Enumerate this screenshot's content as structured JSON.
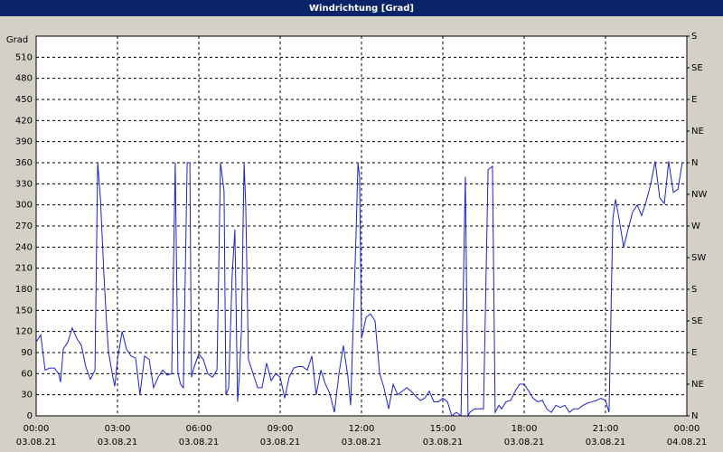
{
  "chart_data": {
    "type": "line",
    "title": "Windrichtung [Grad]",
    "y_label": "Grad",
    "xlim": [
      0,
      24
    ],
    "ylim": [
      0,
      540
    ],
    "y2lim": [
      0,
      540
    ],
    "grid": true,
    "xticks": [
      {
        "value": 0,
        "label": "00:00",
        "date": "03.08.21"
      },
      {
        "value": 3,
        "label": "03:00",
        "date": "03.08.21"
      },
      {
        "value": 6,
        "label": "06:00",
        "date": "03.08.21"
      },
      {
        "value": 9,
        "label": "09:00",
        "date": "03.08.21"
      },
      {
        "value": 12,
        "label": "12:00",
        "date": "03.08.21"
      },
      {
        "value": 15,
        "label": "15:00",
        "date": "03.08.21"
      },
      {
        "value": 18,
        "label": "18:00",
        "date": "03.08.21"
      },
      {
        "value": 21,
        "label": "21:00",
        "date": "03.08.21"
      },
      {
        "value": 24,
        "label": "00:00",
        "date": "04.08.21"
      }
    ],
    "yticks": [
      0,
      30,
      60,
      90,
      120,
      150,
      180,
      210,
      240,
      270,
      300,
      330,
      360,
      390,
      420,
      450,
      480,
      510
    ],
    "y2ticks": [
      {
        "value": 0,
        "label": "N"
      },
      {
        "value": 45,
        "label": "NE"
      },
      {
        "value": 90,
        "label": "E"
      },
      {
        "value": 135,
        "label": "SE"
      },
      {
        "value": 180,
        "label": "S"
      },
      {
        "value": 225,
        "label": "SW"
      },
      {
        "value": 270,
        "label": "W"
      },
      {
        "value": 315,
        "label": "NW"
      },
      {
        "value": 360,
        "label": "N"
      },
      {
        "value": 405,
        "label": "NE"
      },
      {
        "value": 450,
        "label": "E"
      },
      {
        "value": 495,
        "label": "SE"
      },
      {
        "value": 540,
        "label": "S"
      }
    ],
    "series": [
      {
        "color": "#1f1fd0",
        "x": [
          0,
          0.17,
          0.33,
          0.5,
          0.67,
          0.83,
          0.9,
          1.0,
          1.17,
          1.33,
          1.5,
          1.67,
          1.83,
          2.0,
          2.17,
          2.27,
          2.37,
          2.5,
          2.6,
          2.67,
          2.83,
          2.9,
          3.0,
          3.17,
          3.33,
          3.5,
          3.67,
          3.83,
          4.0,
          4.17,
          4.33,
          4.5,
          4.67,
          4.83,
          5.0,
          5.13,
          5.23,
          5.33,
          5.43,
          5.57,
          5.67,
          5.73,
          5.83,
          6.0,
          6.17,
          6.33,
          6.5,
          6.67,
          6.8,
          6.93,
          7.0,
          7.1,
          7.23,
          7.33,
          7.43,
          7.5,
          7.57,
          7.67,
          7.73,
          7.83,
          8.0,
          8.17,
          8.33,
          8.5,
          8.67,
          8.83,
          9.0,
          9.17,
          9.33,
          9.5,
          9.67,
          9.83,
          10.0,
          10.17,
          10.33,
          10.5,
          10.67,
          10.83,
          11.0,
          11.17,
          11.33,
          11.5,
          11.6,
          11.8,
          11.87,
          11.93,
          12.0,
          12.17,
          12.33,
          12.5,
          12.67,
          12.83,
          13.0,
          13.17,
          13.33,
          13.5,
          13.67,
          13.83,
          14.0,
          14.17,
          14.33,
          14.5,
          14.67,
          14.83,
          15.0,
          15.17,
          15.33,
          15.5,
          15.67,
          15.83,
          15.93,
          16.0,
          16.17,
          16.33,
          16.5,
          16.67,
          16.83,
          16.93,
          17.07,
          17.17,
          17.33,
          17.5,
          17.67,
          17.83,
          18.0,
          18.17,
          18.33,
          18.5,
          18.67,
          18.83,
          19.0,
          19.17,
          19.33,
          19.5,
          19.67,
          19.83,
          20.0,
          20.17,
          20.33,
          20.5,
          20.67,
          20.83,
          21.0,
          21.13,
          21.27,
          21.37,
          21.5,
          21.67,
          21.83,
          22.0,
          22.17,
          22.33,
          22.5,
          22.67,
          22.83,
          23.0,
          23.17,
          23.33,
          23.5,
          23.67,
          23.83
        ],
        "values": [
          105,
          115,
          65,
          68,
          68,
          60,
          48,
          95,
          105,
          125,
          110,
          100,
          70,
          52,
          65,
          360,
          310,
          200,
          130,
          90,
          55,
          42,
          80,
          120,
          95,
          85,
          82,
          30,
          85,
          80,
          40,
          55,
          65,
          58,
          60,
          360,
          60,
          45,
          40,
          360,
          360,
          55,
          70,
          88,
          80,
          60,
          55,
          65,
          360,
          320,
          30,
          40,
          200,
          265,
          20,
          60,
          120,
          360,
          300,
          80,
          60,
          40,
          40,
          75,
          50,
          60,
          55,
          25,
          55,
          68,
          70,
          70,
          65,
          85,
          30,
          65,
          45,
          32,
          5,
          60,
          100,
          55,
          15,
          260,
          360,
          340,
          110,
          140,
          145,
          135,
          60,
          40,
          10,
          45,
          30,
          35,
          40,
          35,
          28,
          22,
          25,
          35,
          20,
          20,
          25,
          20,
          0,
          5,
          0,
          340,
          0,
          5,
          10,
          10,
          10,
          350,
          355,
          5,
          15,
          10,
          20,
          22,
          35,
          45,
          45,
          35,
          25,
          20,
          22,
          10,
          5,
          15,
          12,
          15,
          5,
          10,
          10,
          15,
          18,
          20,
          22,
          25,
          22,
          5,
          280,
          308,
          280,
          240,
          265,
          290,
          300,
          285,
          305,
          330,
          362,
          310,
          302,
          362,
          318,
          322,
          360
        ]
      }
    ]
  }
}
